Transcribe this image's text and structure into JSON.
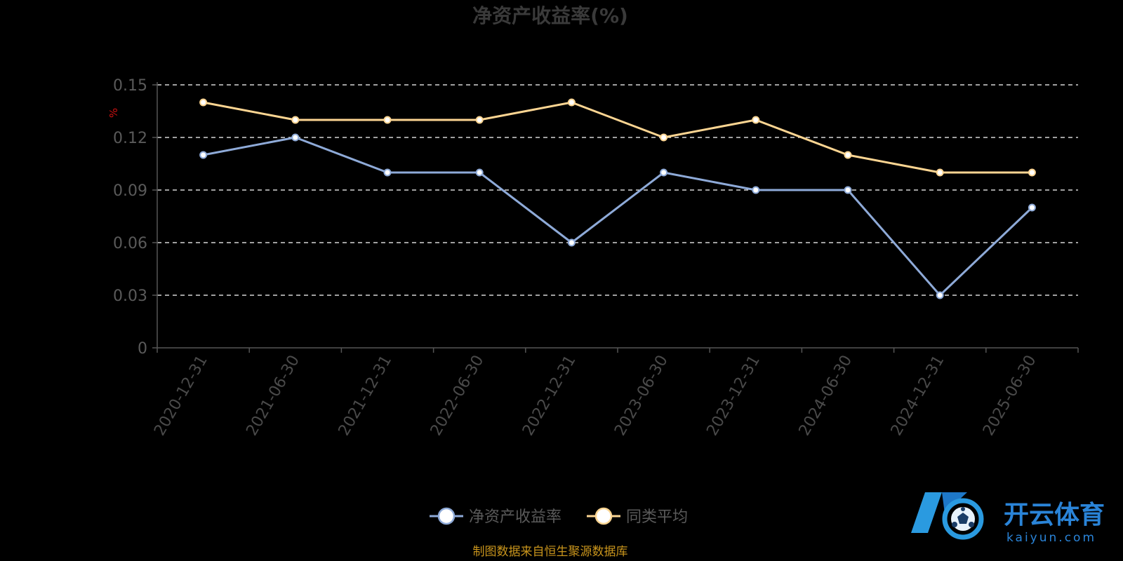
{
  "title": "净资产收益率(%)",
  "source_note": "制图数据来自恒生聚源数据库",
  "watermark": {
    "cn": "开云体育",
    "en": "kaiyun.com"
  },
  "colors": {
    "background": "#000000",
    "roe_line": "#8eaad8",
    "avg_line": "#fcd592",
    "grid": "#ffffff",
    "axis": "#555555",
    "unit": "#cc1111",
    "source": "#c8941c",
    "brand": "#2a84d8"
  },
  "chart_data": {
    "type": "line",
    "title": "净资产收益率(%)",
    "unit_label": "%",
    "categories": [
      "2020-12-31",
      "2021-06-30",
      "2021-12-31",
      "2022-06-30",
      "2022-12-31",
      "2023-06-30",
      "2023-12-31",
      "2024-06-30",
      "2024-12-31",
      "2025-06-30"
    ],
    "ylim": [
      0,
      0.15
    ],
    "y_ticks": [
      "0",
      "0.03",
      "0.06",
      "0.09",
      "0.12",
      "0.15"
    ],
    "grid": true,
    "legend_position": "bottom-center",
    "series": [
      {
        "name": "净资产收益率",
        "color": "#8eaad8",
        "values": [
          0.11,
          0.12,
          0.1,
          0.1,
          0.06,
          0.1,
          0.09,
          0.09,
          0.03,
          0.08
        ]
      },
      {
        "name": "同类平均",
        "color": "#fcd592",
        "values": [
          0.14,
          0.13,
          0.13,
          0.13,
          0.14,
          0.12,
          0.13,
          0.11,
          0.1,
          0.1
        ]
      }
    ]
  }
}
